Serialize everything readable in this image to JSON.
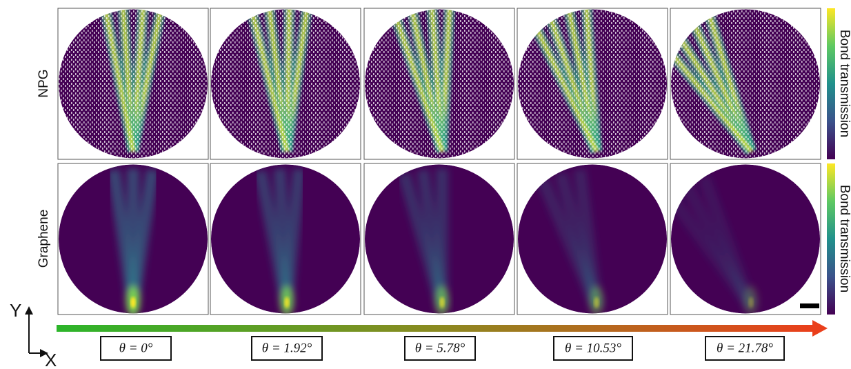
{
  "row_labels": [
    "NPG",
    "Graphene"
  ],
  "colorbar_labels": [
    "Bond transmission",
    "Bond transmission"
  ],
  "angles": [
    "θ = 0°",
    "θ = 1.92°",
    "θ = 5.78°",
    "θ = 10.53°",
    "θ = 21.78°"
  ],
  "axes": {
    "y": "Y",
    "x": "X"
  }
}
